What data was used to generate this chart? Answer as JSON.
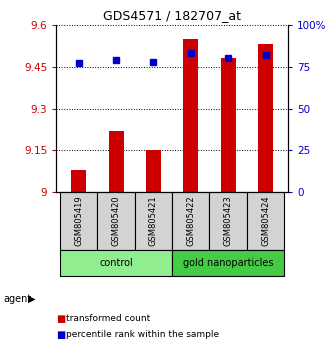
{
  "title": "GDS4571 / 182707_at",
  "samples": [
    "GSM805419",
    "GSM805420",
    "GSM805421",
    "GSM805422",
    "GSM805423",
    "GSM805424"
  ],
  "transformed_count": [
    9.08,
    9.22,
    9.15,
    9.55,
    9.48,
    9.53
  ],
  "percentile_rank": [
    77,
    79,
    78,
    83,
    80,
    82
  ],
  "bar_color": "#cc0000",
  "dot_color": "#0000cc",
  "ylim_left": [
    9.0,
    9.6
  ],
  "ylim_right": [
    0,
    100
  ],
  "yticks_left": [
    9.0,
    9.15,
    9.3,
    9.45,
    9.6
  ],
  "yticks_right": [
    0,
    25,
    50,
    75,
    100
  ],
  "ytick_labels_left": [
    "9",
    "9.15",
    "9.3",
    "9.45",
    "9.6"
  ],
  "ytick_labels_right": [
    "0",
    "25",
    "50",
    "75",
    "100%"
  ],
  "group_labels": [
    "control",
    "gold nanoparticles"
  ],
  "group_colors": [
    "#90ee90",
    "#44dd44"
  ],
  "agent_label": "agent",
  "legend_items": [
    {
      "label": "transformed count",
      "color": "#cc0000"
    },
    {
      "label": "percentile rank within the sample",
      "color": "#0000cc"
    }
  ],
  "bar_width": 0.4,
  "baseline": 9.0,
  "label_box_color": "#d3d3d3"
}
